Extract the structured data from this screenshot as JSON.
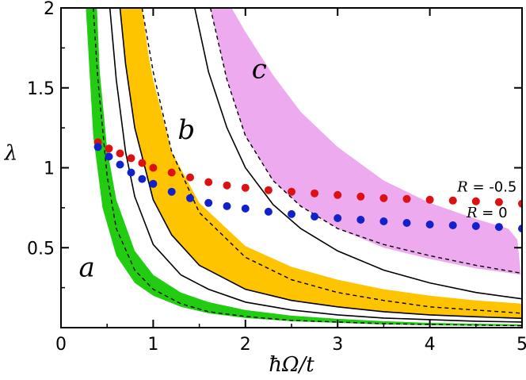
{
  "chart_data": {
    "type": "scatter",
    "title": "",
    "xlabel": "ħΩ/t",
    "ylabel": "λ",
    "xlim": [
      0,
      5
    ],
    "ylim": [
      0,
      2
    ],
    "grid": false,
    "x_ticks": [
      "0",
      "1",
      "2",
      "3",
      "4",
      "5"
    ],
    "y_ticks": [
      "0.5",
      "1",
      "1.5",
      "2"
    ],
    "x_tick_values": [
      0,
      1,
      2,
      3,
      4,
      5
    ],
    "y_tick_values": [
      0.5,
      1,
      1.5,
      2
    ],
    "regions": [
      {
        "label": "a",
        "color": "#22cc11",
        "lower": {
          "x": [
            0.27,
            0.35,
            0.45,
            0.6,
            0.8,
            1.0,
            1.3,
            1.6,
            2.0,
            2.5,
            3.0,
            3.5,
            4.0,
            4.5,
            5.0
          ],
          "y": [
            2.0,
            1.2,
            0.75,
            0.45,
            0.28,
            0.2,
            0.13,
            0.09,
            0.06,
            0.04,
            0.03,
            0.02,
            0.015,
            0.012,
            0.01
          ]
        },
        "upper": {
          "x": [
            0.39,
            0.42,
            0.5,
            0.6,
            0.8,
            1.0,
            1.3,
            1.6,
            2.0,
            2.5,
            3.0,
            3.5,
            4.0,
            4.5,
            5.0
          ],
          "y": [
            2.0,
            1.6,
            1.12,
            0.8,
            0.48,
            0.33,
            0.22,
            0.16,
            0.11,
            0.075,
            0.055,
            0.04,
            0.03,
            0.025,
            0.02
          ]
        },
        "boundary": {
          "x": [
            0.53,
            0.6,
            0.7,
            0.8,
            1.0,
            1.3,
            1.6,
            2.0,
            2.5,
            3.0,
            3.5,
            4.0,
            4.5,
            5.0
          ],
          "y": [
            2.0,
            1.55,
            1.1,
            0.82,
            0.52,
            0.33,
            0.24,
            0.16,
            0.11,
            0.08,
            0.06,
            0.05,
            0.04,
            0.035
          ]
        },
        "dashed": {
          "x": [
            0.35,
            0.4,
            0.5,
            0.6,
            0.8,
            1.0,
            1.3,
            1.6,
            2.0,
            2.5,
            3.0,
            3.5,
            4.0,
            4.5,
            5.0
          ],
          "y": [
            2.0,
            1.55,
            0.95,
            0.62,
            0.36,
            0.24,
            0.15,
            0.1,
            0.07,
            0.045,
            0.035,
            0.025,
            0.02,
            0.016,
            0.012
          ]
        }
      },
      {
        "label": "b",
        "color": "#ffc400",
        "lower": {
          "x": [
            0.64,
            0.7,
            0.8,
            1.0,
            1.2,
            1.5,
            2.0,
            2.5,
            3.0,
            3.5,
            4.0,
            4.5,
            5.0
          ],
          "y": [
            2.0,
            1.65,
            1.25,
            0.8,
            0.58,
            0.39,
            0.24,
            0.17,
            0.13,
            0.1,
            0.08,
            0.068,
            0.058
          ]
        },
        "upper": {
          "x": [
            0.88,
            0.95,
            1.0,
            1.2,
            1.5,
            2.0,
            2.5,
            3.0,
            3.5,
            4.0,
            4.5,
            5.0
          ],
          "y": [
            2.0,
            1.7,
            1.55,
            1.1,
            0.78,
            0.51,
            0.38,
            0.3,
            0.24,
            0.2,
            0.17,
            0.15
          ]
        },
        "boundary": {
          "x": [
            0.64,
            0.7,
            0.8,
            1.0,
            1.2,
            1.5,
            2.0,
            2.5,
            3.0,
            3.5,
            4.0,
            4.5,
            5.0
          ],
          "y": [
            2.0,
            1.65,
            1.25,
            0.8,
            0.58,
            0.39,
            0.24,
            0.17,
            0.13,
            0.1,
            0.08,
            0.068,
            0.058
          ]
        },
        "dashed": {
          "x": [
            0.88,
            1.0,
            1.2,
            1.5,
            2.0,
            2.5,
            3.0,
            3.5,
            4.0,
            4.5,
            5.0
          ],
          "y": [
            2.0,
            1.6,
            1.1,
            0.72,
            0.44,
            0.3,
            0.22,
            0.17,
            0.13,
            0.11,
            0.09
          ]
        }
      },
      {
        "label": "c",
        "color": "#eeaaee",
        "lower": {
          "x": [
            1.62,
            1.8,
            2.0,
            2.3,
            2.6,
            3.0,
            3.5,
            4.0,
            4.5,
            5.0
          ],
          "y": [
            2.0,
            1.55,
            1.2,
            0.92,
            0.76,
            0.62,
            0.5,
            0.43,
            0.37,
            0.33
          ]
        },
        "upper": {
          "x": [
            1.85,
            2.0,
            2.3,
            2.6,
            3.0,
            3.5,
            4.0,
            4.5,
            4.85,
            4.95,
            5.0
          ],
          "y": [
            2.0,
            1.85,
            1.58,
            1.35,
            1.13,
            0.92,
            0.78,
            0.68,
            0.62,
            0.55,
            0.25
          ]
        },
        "boundary": {
          "x": [
            1.45,
            1.6,
            1.8,
            2.0,
            2.3,
            2.6,
            3.0,
            3.5,
            4.0,
            4.5,
            5.0
          ],
          "y": [
            2.0,
            1.6,
            1.25,
            1.0,
            0.77,
            0.62,
            0.48,
            0.36,
            0.28,
            0.22,
            0.18
          ]
        },
        "dashed": {
          "x": [
            1.62,
            1.8,
            2.0,
            2.3,
            2.6,
            3.0,
            3.5,
            4.0,
            4.5,
            5.0
          ],
          "y": [
            2.0,
            1.55,
            1.2,
            0.92,
            0.76,
            0.62,
            0.52,
            0.45,
            0.39,
            0.34
          ]
        }
      }
    ],
    "series": [
      {
        "name": "R = -0.5",
        "color": "#dd1111",
        "x": [
          0.4,
          0.52,
          0.64,
          0.76,
          0.88,
          1.0,
          1.2,
          1.4,
          1.6,
          1.8,
          2.0,
          2.25,
          2.5,
          2.75,
          3.0,
          3.25,
          3.5,
          3.75,
          4.0,
          4.25,
          4.5,
          4.75,
          5.0
        ],
        "y": [
          1.16,
          1.12,
          1.09,
          1.06,
          1.03,
          1.0,
          0.97,
          0.94,
          0.91,
          0.89,
          0.875,
          0.86,
          0.85,
          0.84,
          0.83,
          0.82,
          0.81,
          0.805,
          0.8,
          0.795,
          0.79,
          0.785,
          0.775
        ]
      },
      {
        "name": "R = 0",
        "color": "#1122cc",
        "x": [
          0.4,
          0.52,
          0.64,
          0.76,
          0.88,
          1.0,
          1.2,
          1.4,
          1.6,
          1.8,
          2.0,
          2.25,
          2.5,
          2.75,
          3.0,
          3.25,
          3.5,
          3.75,
          4.0,
          4.25,
          4.5,
          4.75,
          5.0
        ],
        "y": [
          1.13,
          1.07,
          1.02,
          0.97,
          0.93,
          0.9,
          0.85,
          0.81,
          0.78,
          0.76,
          0.745,
          0.725,
          0.71,
          0.695,
          0.685,
          0.675,
          0.665,
          0.655,
          0.645,
          0.64,
          0.635,
          0.63,
          0.62
        ]
      }
    ]
  }
}
